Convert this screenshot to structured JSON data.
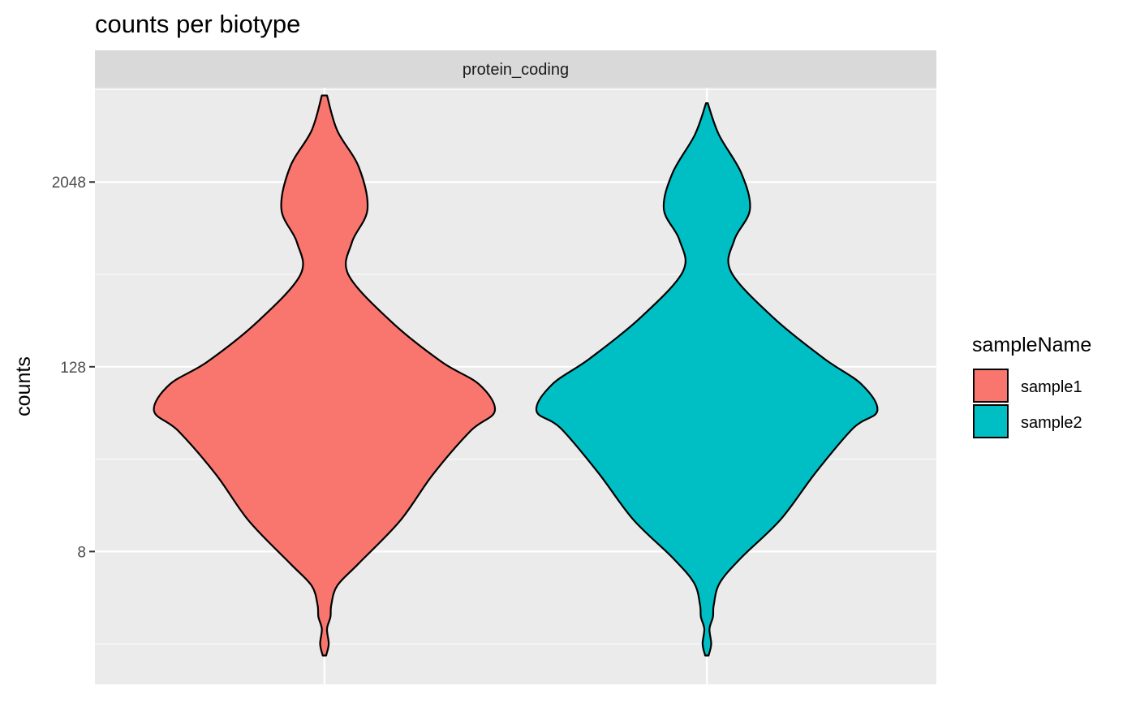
{
  "chart_data": {
    "type": "violin",
    "title": "counts per biotype",
    "facet": "protein_coding",
    "xlabel": "",
    "ylabel": "counts",
    "y_scale": "log2",
    "y_ticks": [
      8,
      128,
      2048
    ],
    "y_tick_labels": [
      "8",
      "128",
      "2048"
    ],
    "ylim": [
      1.09,
      8440
    ],
    "grid": true,
    "legend": {
      "title": "sampleName",
      "placement": "right",
      "entries": [
        {
          "label": "sample1",
          "color": "#F8766D"
        },
        {
          "label": "sample2",
          "color": "#00BFC4"
        }
      ]
    },
    "series": [
      {
        "name": "sample1",
        "color": "#F8766D",
        "density": [
          [
            1.68,
            0.01
          ],
          [
            2.0,
            0.025
          ],
          [
            2.5,
            0.015
          ],
          [
            3.0,
            0.035
          ],
          [
            3.6,
            0.04
          ],
          [
            4.8,
            0.075
          ],
          [
            6.7,
            0.2
          ],
          [
            12.7,
            0.44
          ],
          [
            25.4,
            0.63
          ],
          [
            49.0,
            0.85
          ],
          [
            66.0,
            0.99
          ],
          [
            98.0,
            0.9
          ],
          [
            138.0,
            0.68
          ],
          [
            251.0,
            0.39
          ],
          [
            508.0,
            0.14
          ],
          [
            829.0,
            0.16
          ],
          [
            1360.0,
            0.25
          ],
          [
            2560.0,
            0.2
          ],
          [
            4420.0,
            0.075
          ],
          [
            7510.0,
            0.015
          ]
        ]
      },
      {
        "name": "sample2",
        "color": "#00BFC4",
        "density": [
          [
            1.68,
            0.01
          ],
          [
            2.0,
            0.025
          ],
          [
            2.5,
            0.015
          ],
          [
            3.0,
            0.035
          ],
          [
            3.6,
            0.04
          ],
          [
            5.0,
            0.075
          ],
          [
            7.3,
            0.2
          ],
          [
            13.0,
            0.43
          ],
          [
            26.0,
            0.63
          ],
          [
            51.0,
            0.85
          ],
          [
            66.0,
            0.99
          ],
          [
            98.0,
            0.9
          ],
          [
            145.0,
            0.68
          ],
          [
            265.0,
            0.39
          ],
          [
            533.0,
            0.14
          ],
          [
            861.0,
            0.16
          ],
          [
            1360.0,
            0.25
          ],
          [
            2340.0,
            0.2
          ],
          [
            4160.0,
            0.07
          ],
          [
            6690.0,
            0.005
          ]
        ]
      }
    ]
  }
}
